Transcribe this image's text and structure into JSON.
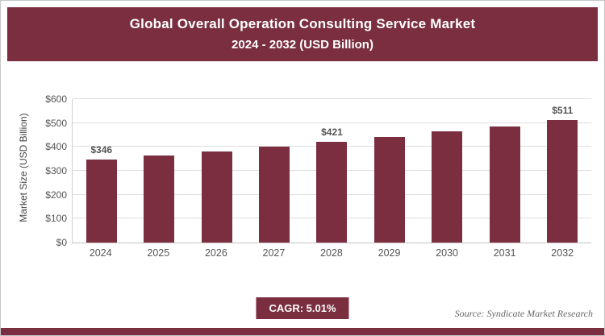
{
  "header": {
    "title_line1": "Global Overall Operation Consulting Service Market",
    "title_line2": "2024 - 2032 (USD Billion)"
  },
  "chart_data": {
    "type": "bar",
    "title": "Global Overall Operation Consulting Service Market 2024 - 2032 (USD Billion)",
    "categories": [
      "2024",
      "2025",
      "2026",
      "2027",
      "2028",
      "2029",
      "2030",
      "2031",
      "2032"
    ],
    "values": [
      346,
      363,
      382,
      401,
      421,
      442,
      464,
      487,
      511
    ],
    "value_labels": [
      "$346",
      null,
      null,
      null,
      "$421",
      null,
      null,
      null,
      "$511"
    ],
    "xlabel": "",
    "ylabel": "Market Size (USD Billion)",
    "ylim": [
      0,
      600
    ],
    "ytick_step": 100,
    "ytick_labels": [
      "$0",
      "$100",
      "$200",
      "$300",
      "$400",
      "$500",
      "$600"
    ],
    "grid": true,
    "legend": "none",
    "bar_color": "#7a2e3f"
  },
  "footer": {
    "cagr_label": "CAGR: 5.01%",
    "source": "Source: Syndicate Market Research"
  },
  "colors": {
    "accent": "#7a2e3f",
    "gridline": "#dedede",
    "text_muted": "#555555"
  }
}
